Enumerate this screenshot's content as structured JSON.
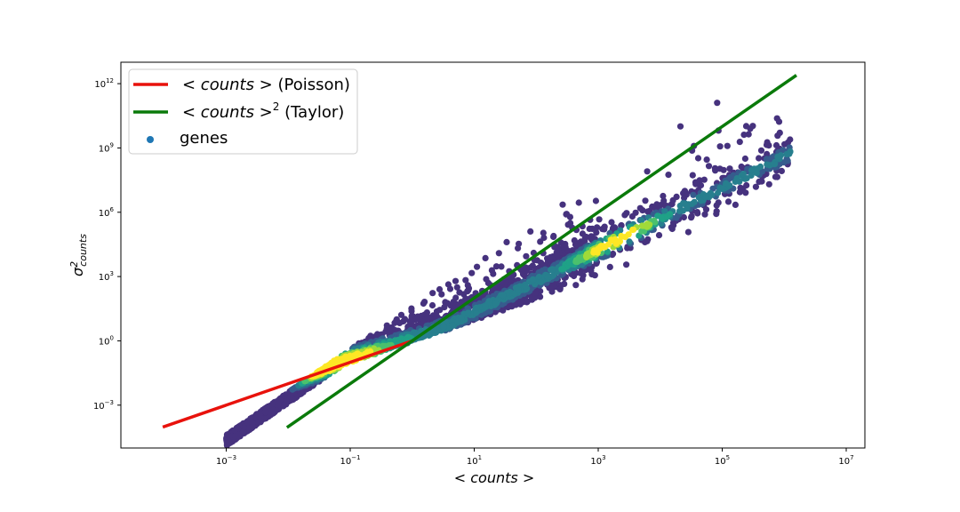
{
  "chart_data": {
    "type": "scatter",
    "xscale": "log",
    "yscale": "log",
    "xlim": [
      2e-05,
      20000000.0
    ],
    "ylim": [
      1e-05,
      10000000000000.0
    ],
    "xlabel": "< counts >",
    "ylabel": "σ²_counts",
    "xticks": [
      {
        "base": "10",
        "exp": "−3"
      },
      {
        "base": "10",
        "exp": "−1"
      },
      {
        "base": "10",
        "exp": "1"
      },
      {
        "base": "10",
        "exp": "3"
      },
      {
        "base": "10",
        "exp": "5"
      },
      {
        "base": "10",
        "exp": "7"
      }
    ],
    "yticks": [
      {
        "base": "10",
        "exp": "−3"
      },
      {
        "base": "10",
        "exp": "0"
      },
      {
        "base": "10",
        "exp": "3"
      },
      {
        "base": "10",
        "exp": "6"
      },
      {
        "base": "10",
        "exp": "9"
      },
      {
        "base": "10",
        "exp": "12"
      }
    ],
    "lines": [
      {
        "name": "< counts >  (Poisson)",
        "legend_main": "< counts >",
        "legend_suffix": " (Poisson)",
        "color": "#e8120c",
        "x": [
          0.0001,
          1
        ],
        "y": [
          0.0001,
          1
        ]
      },
      {
        "name": "< counts >² (Taylor)",
        "legend_main": "< counts >",
        "legend_sup": "2",
        "legend_suffix": " (Taylor)",
        "color": "#0a7a0a",
        "x": [
          0.01,
          1500000
        ],
        "y": [
          0.0001,
          2250000000000
        ]
      }
    ],
    "scatter": {
      "name": "genes",
      "legend_label": "genes",
      "legend_color": "#1f77b4",
      "colormap": [
        "#46327e",
        "#365c8d",
        "#277f8e",
        "#1fa187",
        "#4ac16d",
        "#a0da39",
        "#fde725"
      ],
      "approx_range_x": [
        0.001,
        1000000
      ],
      "density_peaks_x": [
        0.03,
        0.1,
        1000
      ],
      "note_y_relation": "variance roughly between mean and 10×mean² ; densest near y ≈ 0.4·mean^1.5"
    },
    "legend_position": "upper-left",
    "grid": false
  }
}
